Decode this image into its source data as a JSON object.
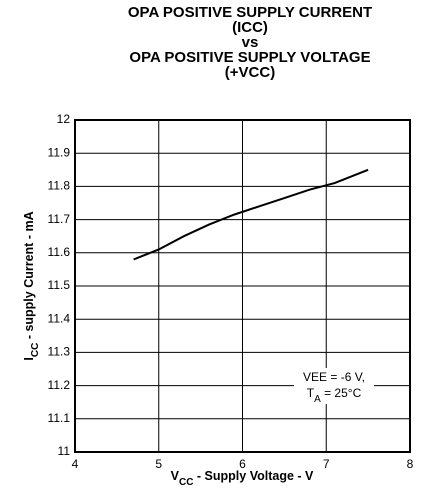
{
  "chart_data": {
    "type": "line",
    "title": [
      "OPA POSITIVE SUPPLY CURRENT",
      "(ICC)",
      "vs",
      "OPA POSITIVE SUPPLY VOLTAGE",
      "(+VCC)"
    ],
    "ylabel": {
      "main": "I",
      "sub": "CC",
      "rest": " - supply Current - mA"
    },
    "xlabel": {
      "main": "V",
      "sub": "CC",
      "rest": " - Supply Voltage - V"
    },
    "annotation": {
      "line1": "VEE = -6 V,",
      "line2": {
        "main": "T",
        "sub": "A",
        "rest": " = 25°C"
      }
    },
    "x": [
      4.7,
      5.0,
      5.3,
      5.6,
      5.9,
      6.2,
      6.5,
      6.8,
      7.1,
      7.5
    ],
    "series": [
      {
        "name": "ICC",
        "color": "#000000",
        "values": [
          11.58,
          11.61,
          11.65,
          11.685,
          11.715,
          11.74,
          11.765,
          11.79,
          11.81,
          11.85
        ]
      }
    ],
    "xlim": [
      4,
      8
    ],
    "xticks": [
      4,
      5,
      6,
      7,
      8
    ],
    "ylim": [
      11,
      12
    ],
    "yticks": [
      11,
      11.1,
      11.2,
      11.3,
      11.4,
      11.5,
      11.6,
      11.7,
      11.8,
      11.9,
      12
    ],
    "grid": true
  }
}
